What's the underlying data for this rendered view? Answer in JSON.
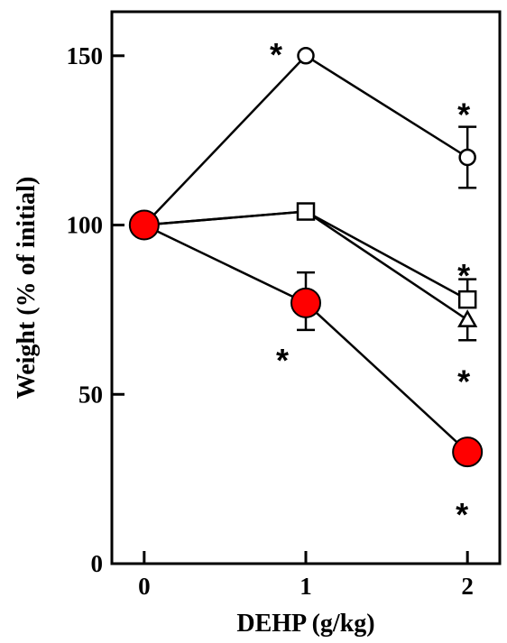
{
  "chart_data": {
    "type": "line",
    "xlabel": "DEHP (g/kg)",
    "ylabel": "Weight (% of initial)",
    "x": [
      0,
      1,
      2
    ],
    "x_tick_labels": [
      "0",
      "1",
      "2"
    ],
    "y_ticks": [
      0,
      50,
      100,
      150
    ],
    "y_tick_labels": [
      "0",
      "50",
      "100",
      "150"
    ],
    "xlim": [
      -0.2,
      2.2
    ],
    "ylim": [
      0,
      163
    ],
    "grid": false,
    "legend": "none",
    "series": [
      {
        "marker": "circle-open",
        "color": "#000000",
        "values": [
          100,
          150,
          120
        ],
        "error_upper": [
          null,
          null,
          9
        ],
        "error_lower": [
          null,
          null,
          9
        ],
        "significance": [
          null,
          "*",
          "*"
        ]
      },
      {
        "marker": "square-open",
        "color": "#000000",
        "values": [
          100,
          104,
          78
        ],
        "error_upper": [
          null,
          null,
          6
        ],
        "error_lower": [
          null,
          null,
          null
        ],
        "significance": [
          null,
          null,
          "*"
        ]
      },
      {
        "marker": "triangle-open",
        "color": "#000000",
        "values": [
          100,
          104,
          72
        ],
        "error_upper": [
          null,
          null,
          null
        ],
        "error_lower": [
          null,
          null,
          6
        ],
        "significance": [
          null,
          null,
          "*"
        ]
      },
      {
        "marker": "circle-filled",
        "color": "#ff0000",
        "values": [
          100,
          77,
          33
        ],
        "error_upper": [
          null,
          9,
          null
        ],
        "error_lower": [
          null,
          8,
          null
        ],
        "significance": [
          null,
          "*",
          "*"
        ]
      }
    ]
  }
}
